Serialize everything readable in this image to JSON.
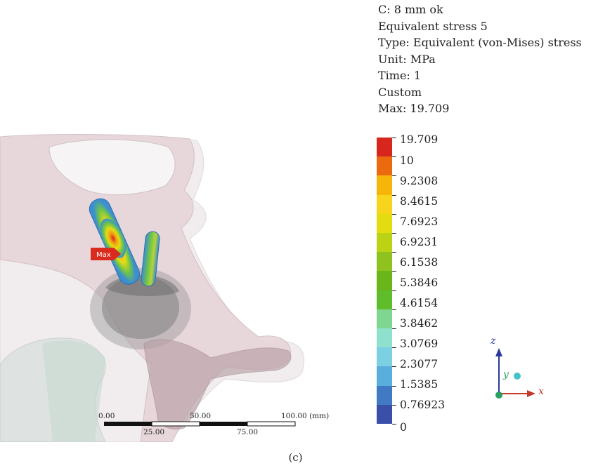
{
  "info": {
    "lines": [
      "C: 8 mm ok",
      "Equivalent stress 5",
      "Type: Equivalent (von-Mises) stress",
      "Unit: MPa",
      "Time: 1",
      "Custom",
      "Max: 19.709"
    ]
  },
  "legend": {
    "labels": [
      "19.709",
      "10",
      "9.2308",
      "8.4615",
      "7.6923",
      "6.9231",
      "6.1538",
      "5.3846",
      "4.6154",
      "3.8462",
      "3.0769",
      "2.3077",
      "1.5385",
      "0.76923",
      "0"
    ],
    "colors": [
      "#d7261e",
      "#ec6a0f",
      "#f5b50a",
      "#f7d51c",
      "#e3dc10",
      "#bcd214",
      "#8fc21e",
      "#6ab51a",
      "#5fbc2a",
      "#7fd690",
      "#8fe0cc",
      "#7dcfe2",
      "#5aaedc",
      "#4179c2",
      "#3a50a8"
    ]
  },
  "viewport": {
    "max_probe_label": "Max"
  },
  "scalebar": {
    "top_labels": [
      "0.00",
      "50.00",
      "100.00 (mm)"
    ],
    "bottom_labels": [
      "25.00",
      "75.00"
    ]
  },
  "axes": {
    "z_label": "z",
    "y_label": "y",
    "x_label": "x",
    "colors": {
      "z": "#2a3a9a",
      "x": "#c23a2a",
      "y": "#2aa060",
      "dot": "#43c2c8"
    }
  },
  "caption": "(c)"
}
